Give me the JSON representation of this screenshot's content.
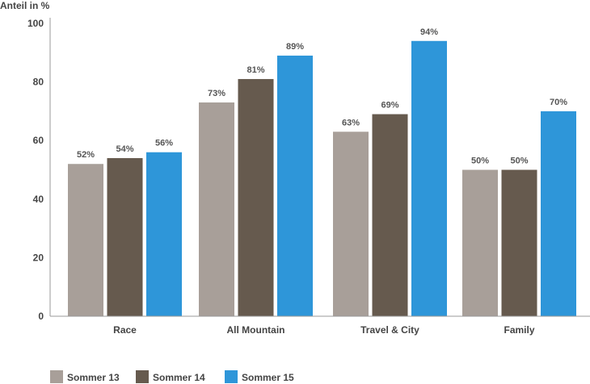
{
  "chart_data": {
    "type": "bar",
    "title": "",
    "xlabel": "",
    "ylabel": "Anteil in %",
    "ylim": [
      0,
      100
    ],
    "yticks": [
      0,
      20,
      40,
      60,
      80,
      100
    ],
    "grid": false,
    "legend_position": "bottom-left",
    "categories": [
      "Race",
      "All Mountain",
      "Travel & City",
      "Family"
    ],
    "series": [
      {
        "name": "Sommer 13",
        "color": "#a89f99",
        "values": [
          52,
          73,
          63,
          50
        ],
        "labels": [
          "52%",
          "73%",
          "63%",
          "50%"
        ]
      },
      {
        "name": "Sommer 14",
        "color": "#665a4e",
        "values": [
          54,
          81,
          69,
          50
        ],
        "labels": [
          "54%",
          "81%",
          "69%",
          "50%"
        ]
      },
      {
        "name": "Sommer 15",
        "color": "#2e96d9",
        "values": [
          56,
          89,
          94,
          70
        ],
        "labels": [
          "56%",
          "89%",
          "94%",
          "70%"
        ]
      }
    ]
  }
}
